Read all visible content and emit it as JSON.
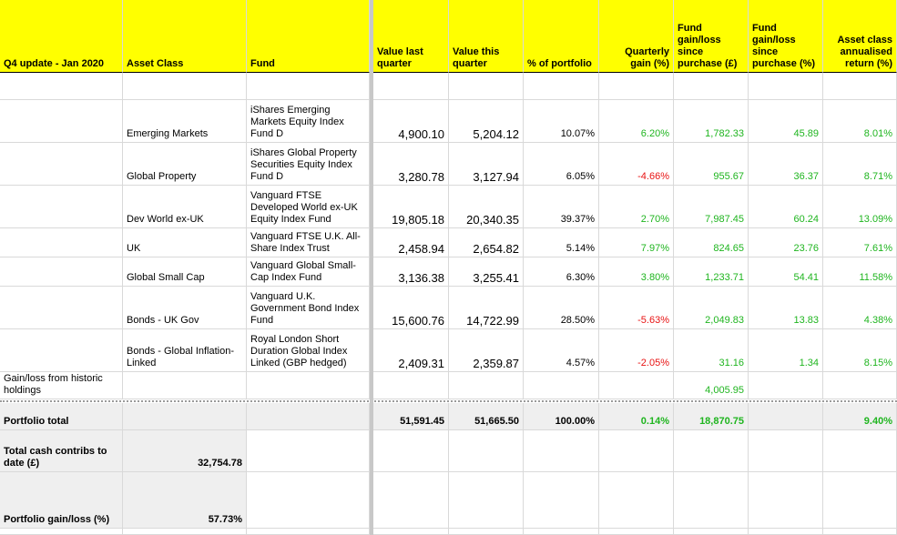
{
  "header": {
    "title": "Q4 update - Jan 2020",
    "asset_class": "Asset Class",
    "fund": "Fund",
    "value_last_quarter": "Value last quarter",
    "value_this_quarter": "Value this quarter",
    "pct_portfolio": "% of portfolio",
    "quarterly_gain": "Quarterly gain (%)",
    "fund_gain_gbp": "Fund gain/loss since purchase (£)",
    "fund_gain_pct": "Fund gain/loss since purchase (%)",
    "asset_class_return": "Asset class annualised return (%)"
  },
  "rows": [
    {
      "asset": "Emerging Markets",
      "fund": "iShares Emerging Markets Equity Index Fund D",
      "last": "4,900.10",
      "this": "5,204.12",
      "pct": "10.07%",
      "qgain": "6.20%",
      "gain_gbp": "1,782.33",
      "gain_pct": "45.89",
      "ann": "8.01%"
    },
    {
      "asset": "Global Property",
      "fund": "iShares Global Property Securities Equity Index Fund D",
      "last": "3,280.78",
      "this": "3,127.94",
      "pct": "6.05%",
      "qgain": "-4.66%",
      "gain_gbp": "955.67",
      "gain_pct": "36.37",
      "ann": "8.71%"
    },
    {
      "asset": "Dev World ex-UK",
      "fund": "Vanguard FTSE Developed World ex-UK Equity Index Fund",
      "last": "19,805.18",
      "this": "20,340.35",
      "pct": "39.37%",
      "qgain": "2.70%",
      "gain_gbp": "7,987.45",
      "gain_pct": "60.24",
      "ann": "13.09%"
    },
    {
      "asset": "UK",
      "fund": "Vanguard FTSE U.K. All-Share Index Trust",
      "last": "2,458.94",
      "this": "2,654.82",
      "pct": "5.14%",
      "qgain": "7.97%",
      "gain_gbp": "824.65",
      "gain_pct": "23.76",
      "ann": "7.61%"
    },
    {
      "asset": "Global Small Cap",
      "fund": "Vanguard Global Small-Cap Index Fund",
      "last": "3,136.38",
      "this": "3,255.41",
      "pct": "6.30%",
      "qgain": "3.80%",
      "gain_gbp": "1,233.71",
      "gain_pct": "54.41",
      "ann": "11.58%"
    },
    {
      "asset": "Bonds - UK Gov",
      "fund": "Vanguard U.K. Government Bond Index Fund",
      "last": "15,600.76",
      "this": "14,722.99",
      "pct": "28.50%",
      "qgain": "-5.63%",
      "gain_gbp": "2,049.83",
      "gain_pct": "13.83",
      "ann": "4.38%"
    },
    {
      "asset": "Bonds - Global Inflation-Linked",
      "fund": "Royal London Short Duration Global Index Linked (GBP hedged)",
      "last": "2,409.31",
      "this": "2,359.87",
      "pct": "4.57%",
      "qgain": "-2.05%",
      "gain_gbp": "31.16",
      "gain_pct": "1.34",
      "ann": "8.15%"
    }
  ],
  "historic": {
    "label": "Gain/loss from historic holdings",
    "gain_gbp": "4,005.95"
  },
  "total": {
    "label": "Portfolio total",
    "last": "51,591.45",
    "this": "51,665.50",
    "pct": "100.00%",
    "qgain": "0.14%",
    "gain_gbp": "18,870.75",
    "ann": "9.40%"
  },
  "cash": {
    "label": "Total cash contribs to date (£)",
    "value": "32,754.78"
  },
  "portfolio_gain": {
    "label": "Portfolio gain/loss (%)",
    "value": "57.73%"
  },
  "colors": {
    "header_bg": "#ffff00",
    "gain": "#1fb51f",
    "loss": "#e81313",
    "total_bg": "#efefef"
  }
}
